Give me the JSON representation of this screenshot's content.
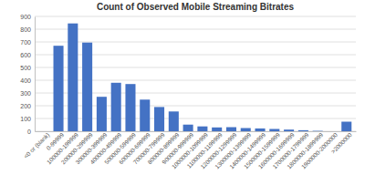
{
  "chart_data": {
    "type": "bar",
    "title": "Count of Observed Mobile Streaming Bitrates",
    "categories": [
      "<0 or (blank)",
      "0-99999",
      "100000-199999",
      "200000-299999",
      "300000-399999",
      "400000-499999",
      "500000-599999",
      "600000-699999",
      "700000-799999",
      "800000-899999",
      "900000-999999",
      "1000000-1099999",
      "1100000-1199999",
      "1200000-1299999",
      "1300000-1399999",
      "1400000-1499999",
      "1500000-1599999",
      "1600000-1699999",
      "1700000-1799999",
      "1800000-1899999",
      "1900000-2000000",
      ">2000000"
    ],
    "values": [
      0,
      670,
      845,
      695,
      270,
      380,
      370,
      248,
      190,
      155,
      52,
      38,
      30,
      32,
      25,
      22,
      18,
      13,
      8,
      3,
      0,
      75
    ],
    "color": "#4472C4",
    "ylim": [
      0,
      900
    ],
    "yticks": [
      0,
      100,
      200,
      300,
      400,
      500,
      600,
      700,
      800,
      900
    ],
    "grid": true
  }
}
